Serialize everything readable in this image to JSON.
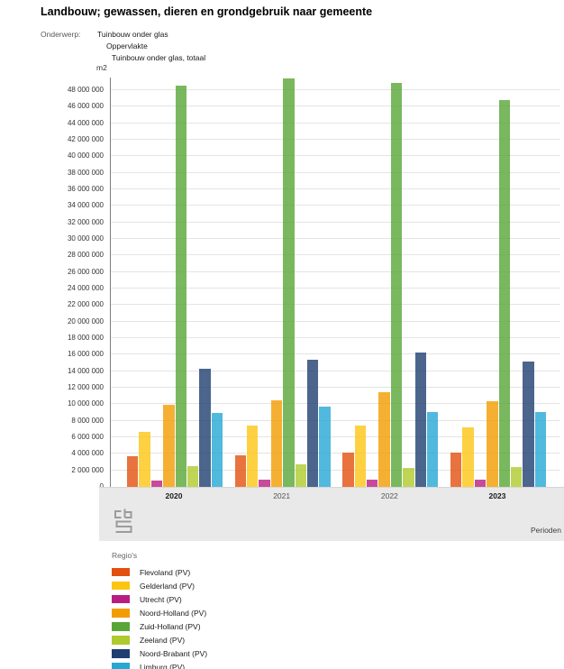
{
  "page": {
    "title": "Landbouw; gewassen, dieren en grondgebruik naar gemeente"
  },
  "subject": {
    "label": "Onderwerp:",
    "lines": [
      "Tuinbouw onder glas",
      "Oppervlakte",
      "Tuinbouw onder glas, totaal"
    ]
  },
  "chart_data": {
    "type": "bar",
    "title": "Landbouw; gewassen, dieren en grondgebruik naar gemeente",
    "unit_label": "m2",
    "xlabel": "Perioden",
    "ylabel": "m2",
    "ylim": [
      0,
      48000000
    ],
    "y_tick_step": 2000000,
    "grid": true,
    "legend_title": "Regio's",
    "legend_position": "bottom-left",
    "categories": [
      "2020",
      "2021",
      "2022",
      "2023"
    ],
    "category_emphasis": [
      true,
      false,
      false,
      true
    ],
    "y_ticks": [
      "0",
      "2 000 000",
      "4 000 000",
      "6 000 000",
      "8 000 000",
      "10 000 000",
      "12 000 000",
      "14 000 000",
      "16 000 000",
      "18 000 000",
      "20 000 000",
      "22 000 000",
      "24 000 000",
      "26 000 000",
      "28 000 000",
      "30 000 000",
      "32 000 000",
      "34 000 000",
      "36 000 000",
      "38 000 000",
      "40 000 000",
      "42 000 000",
      "44 000 000",
      "46 000 000",
      "48 000 000"
    ],
    "series": [
      {
        "name": "Flevoland (PV)",
        "color": "#E2500F",
        "values": [
          3700000,
          3800000,
          4200000,
          4100000
        ]
      },
      {
        "name": "Gelderland (PV)",
        "color": "#FDC513",
        "values": [
          6700000,
          7400000,
          7400000,
          7200000
        ]
      },
      {
        "name": "Utrecht (PV)",
        "color": "#B81E82",
        "values": [
          800000,
          900000,
          900000,
          900000
        ]
      },
      {
        "name": "Noord-Holland (PV)",
        "color": "#F39C00",
        "values": [
          9900000,
          10500000,
          11500000,
          10400000
        ]
      },
      {
        "name": "Zuid-Holland (PV)",
        "color": "#57A636",
        "values": [
          48500000,
          49400000,
          48900000,
          46800000
        ]
      },
      {
        "name": "Zeeland (PV)",
        "color": "#AFCA2C",
        "values": [
          2500000,
          2700000,
          2300000,
          2400000
        ]
      },
      {
        "name": "Noord-Brabant (PV)",
        "color": "#1E3F70",
        "values": [
          14300000,
          15400000,
          16300000,
          15200000
        ]
      },
      {
        "name": "Limburg (PV)",
        "color": "#25A8D4",
        "values": [
          9000000,
          9700000,
          9100000,
          9100000
        ]
      }
    ]
  },
  "footer": {
    "x_axis_label": "Perioden"
  },
  "icons": {
    "footer_logo": "cbs-logo"
  }
}
